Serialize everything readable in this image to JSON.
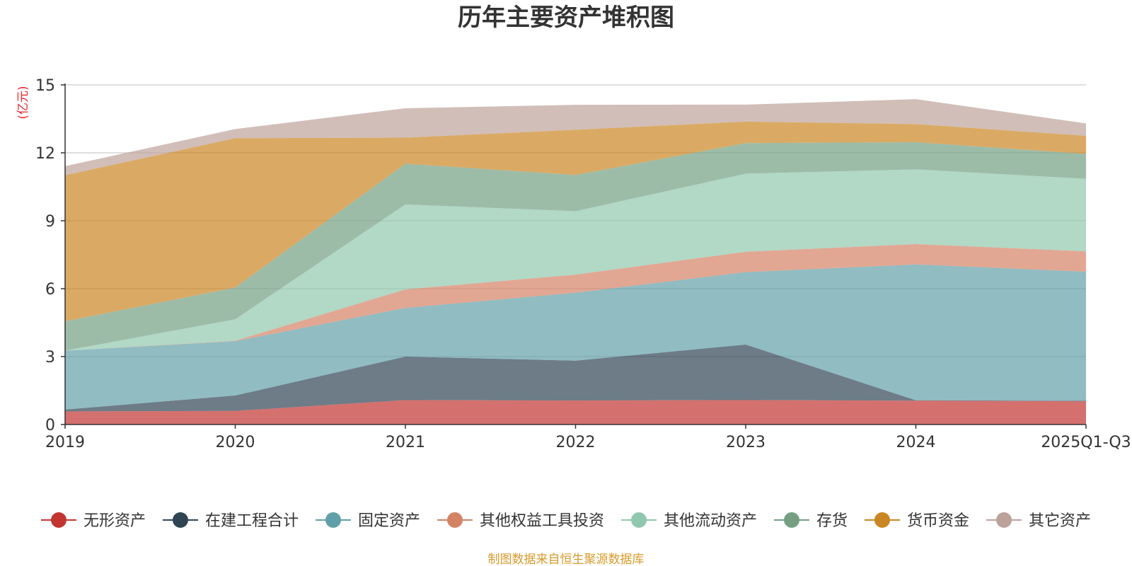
{
  "chart_data": {
    "type": "area",
    "stacked": true,
    "title": "历年主要资产堆积图",
    "unit_label": "(亿元)",
    "source": "制图数据来自恒生聚源数据库",
    "categories": [
      "2019",
      "2020",
      "2021",
      "2022",
      "2023",
      "2024",
      "2025Q1-Q3"
    ],
    "y_ticks": [
      0,
      3,
      6,
      9,
      12,
      15
    ],
    "ylim": [
      0,
      15
    ],
    "grid": true,
    "legend_position": "bottom",
    "series": [
      {
        "name": "无形资产",
        "color": "#c23531",
        "values": [
          0.58,
          0.6,
          1.08,
          1.06,
          1.08,
          1.05,
          1.03
        ]
      },
      {
        "name": "在建工程合计",
        "color": "#2f4554",
        "values": [
          0.08,
          0.68,
          1.92,
          1.76,
          2.45,
          0.02,
          0.02
        ]
      },
      {
        "name": "固定资产",
        "color": "#61a0a8",
        "values": [
          2.6,
          2.4,
          2.15,
          3.0,
          3.2,
          6.0,
          5.7
        ]
      },
      {
        "name": "其他权益工具投资",
        "color": "#d48265",
        "values": [
          0.0,
          0.02,
          0.82,
          0.8,
          0.9,
          0.9,
          0.9
        ]
      },
      {
        "name": "其他流动资产",
        "color": "#91c7ae",
        "values": [
          0.0,
          0.95,
          3.75,
          2.8,
          3.45,
          3.3,
          3.2
        ]
      },
      {
        "name": "存货",
        "color": "#749f83",
        "values": [
          1.3,
          1.4,
          1.8,
          1.6,
          1.35,
          1.2,
          1.1
        ]
      },
      {
        "name": "货币资金",
        "color": "#ca8622",
        "values": [
          6.45,
          6.6,
          1.15,
          2.0,
          0.95,
          0.8,
          0.8
        ]
      },
      {
        "name": "其它资产",
        "color": "#bda29a",
        "values": [
          0.4,
          0.4,
          1.3,
          1.1,
          0.75,
          1.1,
          0.55
        ]
      }
    ]
  }
}
